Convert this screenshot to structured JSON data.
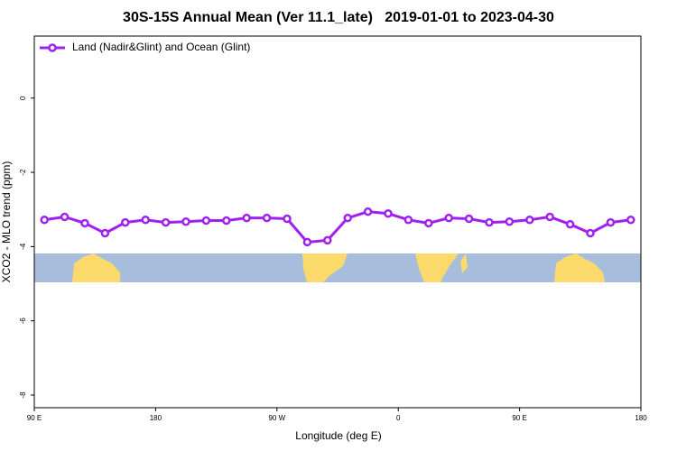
{
  "chart_data": {
    "type": "line",
    "title": "30S-15S Annual Mean (Ver 11.1_late)   2019-01-01 to 2023-04-30",
    "xlabel": "Longitude (deg E)",
    "ylabel": "XCO2 - MLO trend (ppm)",
    "xlim": [
      90,
      540
    ],
    "ylim": [
      -8.34,
      1.67
    ],
    "xticks": [
      {
        "value": 90,
        "label": "90 E"
      },
      180,
      {
        "value": 270,
        "label": "90 W"
      },
      {
        "value": 360,
        "label": "0"
      },
      {
        "value": 450,
        "label": "90 E"
      },
      {
        "value": 540,
        "label": "180"
      }
    ],
    "yticks": [
      0,
      -2,
      -4,
      -6,
      -8
    ],
    "legend": "top-left",
    "series": [
      {
        "name": "Land (Nadir&Glint) and Ocean (Glint)",
        "color": "#a020f0",
        "x": [
          97.5,
          112.5,
          127.5,
          142.5,
          157.5,
          172.5,
          187.5,
          202.5,
          217.5,
          232.5,
          247.5,
          262.5,
          277.5,
          292.5,
          307.5,
          322.5,
          337.5,
          352.5,
          367.5,
          382.5,
          397.5,
          412.5,
          427.5,
          442.5,
          457.5,
          472.5,
          487.5,
          502.5,
          517.5,
          532.5
        ],
        "values": [
          -3.28,
          -3.2,
          -3.37,
          -3.64,
          -3.35,
          -3.28,
          -3.35,
          -3.33,
          -3.3,
          -3.3,
          -3.23,
          -3.23,
          -3.25,
          -3.88,
          -3.83,
          -3.23,
          -3.06,
          -3.11,
          -3.28,
          -3.37,
          -3.23,
          -3.25,
          -3.35,
          -3.33,
          -3.28,
          -3.2,
          -3.4,
          -3.64,
          -3.35,
          -3.28
        ]
      }
    ]
  }
}
